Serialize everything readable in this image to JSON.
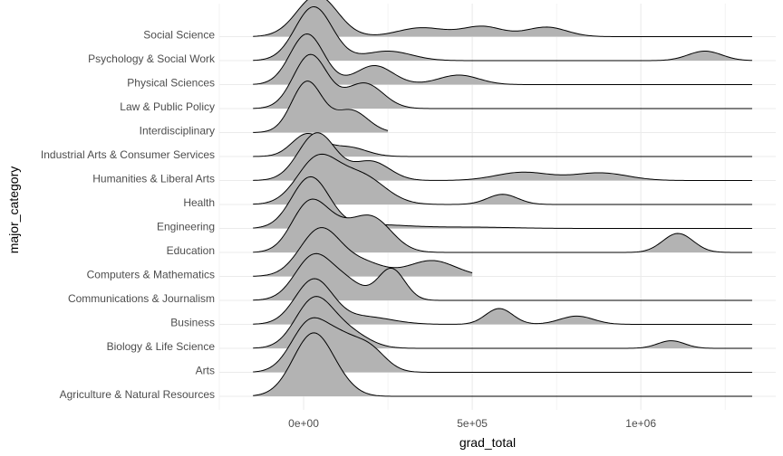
{
  "chart_data": {
    "type": "ridgeline",
    "xlabel": "grad_total",
    "ylabel": "major_category",
    "x_tick_values": [
      0,
      500000,
      1000000
    ],
    "x_tick_labels": [
      "0e+00",
      "5e+05",
      "1e+06"
    ],
    "xlim": [
      -250000,
      1400000
    ],
    "grid": true,
    "fill_color": "#b3b3b3",
    "line_color": "#000000",
    "grid_color": "#ebebeb",
    "categories": [
      "Agriculture & Natural Resources",
      "Arts",
      "Biology & Life Science",
      "Business",
      "Communications & Journalism",
      "Computers & Mathematics",
      "Education",
      "Engineering",
      "Health",
      "Humanities & Liberal Arts",
      "Industrial Arts & Consumer Services",
      "Interdisciplinary",
      "Law & Public Policy",
      "Physical Sciences",
      "Psychology & Social Work",
      "Social Science"
    ],
    "densities": [
      {
        "name": "Agriculture & Natural Resources",
        "range": [
          -150000,
          1330000
        ],
        "peaks": [
          [
            30000,
            60000,
            1.0
          ],
          [
            130000,
            40000,
            0.04
          ]
        ]
      },
      {
        "name": "Arts",
        "range": [
          -150000,
          1330000
        ],
        "peaks": [
          [
            20000,
            55000,
            0.8
          ],
          [
            190000,
            50000,
            0.4
          ],
          [
            110000,
            45000,
            0.35
          ]
        ]
      },
      {
        "name": "Biology & Life Science",
        "range": [
          -150000,
          1330000
        ],
        "peaks": [
          [
            30000,
            55000,
            0.75
          ],
          [
            130000,
            60000,
            0.25
          ],
          [
            1090000,
            40000,
            0.12
          ]
        ]
      },
      {
        "name": "Business",
        "range": [
          -150000,
          1330000
        ],
        "peaks": [
          [
            30000,
            55000,
            0.7
          ],
          [
            180000,
            80000,
            0.12
          ],
          [
            580000,
            40000,
            0.25
          ],
          [
            810000,
            50000,
            0.13
          ]
        ]
      },
      {
        "name": "Communications & Journalism",
        "range": [
          -150000,
          1330000
        ],
        "peaks": [
          [
            30000,
            55000,
            0.7
          ],
          [
            130000,
            50000,
            0.25
          ],
          [
            260000,
            40000,
            0.5
          ]
        ]
      },
      {
        "name": "Computers & Mathematics",
        "range": [
          -150000,
          500000
        ],
        "peaks": [
          [
            50000,
            60000,
            0.75
          ],
          [
            180000,
            60000,
            0.2
          ],
          [
            380000,
            70000,
            0.25
          ]
        ]
      },
      {
        "name": "Education",
        "range": [
          -150000,
          1330000
        ],
        "peaks": [
          [
            10000,
            50000,
            0.65
          ],
          [
            80000,
            55000,
            0.35
          ],
          [
            200000,
            60000,
            0.55
          ],
          [
            1110000,
            45000,
            0.3
          ]
        ]
      },
      {
        "name": "Engineering",
        "range": [
          -150000,
          1330000
        ],
        "peaks": [
          [
            20000,
            55000,
            0.8
          ],
          [
            200000,
            110000,
            0.06
          ],
          [
            500000,
            120000,
            0.02
          ]
        ]
      },
      {
        "name": "Health",
        "range": [
          -150000,
          1330000
        ],
        "peaks": [
          [
            40000,
            60000,
            0.7
          ],
          [
            170000,
            70000,
            0.45
          ],
          [
            590000,
            45000,
            0.16
          ]
        ]
      },
      {
        "name": "Humanities & Liberal Arts",
        "range": [
          -150000,
          1330000
        ],
        "peaks": [
          [
            40000,
            55000,
            0.75
          ],
          [
            200000,
            55000,
            0.3
          ],
          [
            650000,
            80000,
            0.13
          ],
          [
            880000,
            80000,
            0.12
          ]
        ]
      },
      {
        "name": "Industrial Arts & Consumer Services",
        "range": [
          -150000,
          1330000
        ],
        "peaks": [
          [
            10000,
            45000,
            0.35
          ],
          [
            130000,
            55000,
            0.15
          ]
        ]
      },
      {
        "name": "Interdisciplinary",
        "range": [
          -150000,
          250000
        ],
        "peaks": [
          [
            10000,
            45000,
            0.8
          ],
          [
            140000,
            50000,
            0.35
          ]
        ]
      },
      {
        "name": "Law & Public Policy",
        "range": [
          -150000,
          1330000
        ],
        "peaks": [
          [
            20000,
            50000,
            0.85
          ],
          [
            180000,
            55000,
            0.4
          ]
        ]
      },
      {
        "name": "Physical Sciences",
        "range": [
          -150000,
          1330000
        ],
        "peaks": [
          [
            10000,
            50000,
            0.8
          ],
          [
            210000,
            55000,
            0.3
          ],
          [
            460000,
            60000,
            0.15
          ]
        ]
      },
      {
        "name": "Psychology & Social Work",
        "range": [
          -150000,
          1330000
        ],
        "peaks": [
          [
            30000,
            55000,
            0.85
          ],
          [
            250000,
            70000,
            0.15
          ],
          [
            1190000,
            50000,
            0.15
          ]
        ]
      },
      {
        "name": "Social Science",
        "range": [
          -150000,
          1330000
        ],
        "peaks": [
          [
            40000,
            60000,
            0.65
          ],
          [
            350000,
            70000,
            0.14
          ],
          [
            530000,
            60000,
            0.16
          ],
          [
            720000,
            60000,
            0.15
          ]
        ]
      }
    ]
  }
}
